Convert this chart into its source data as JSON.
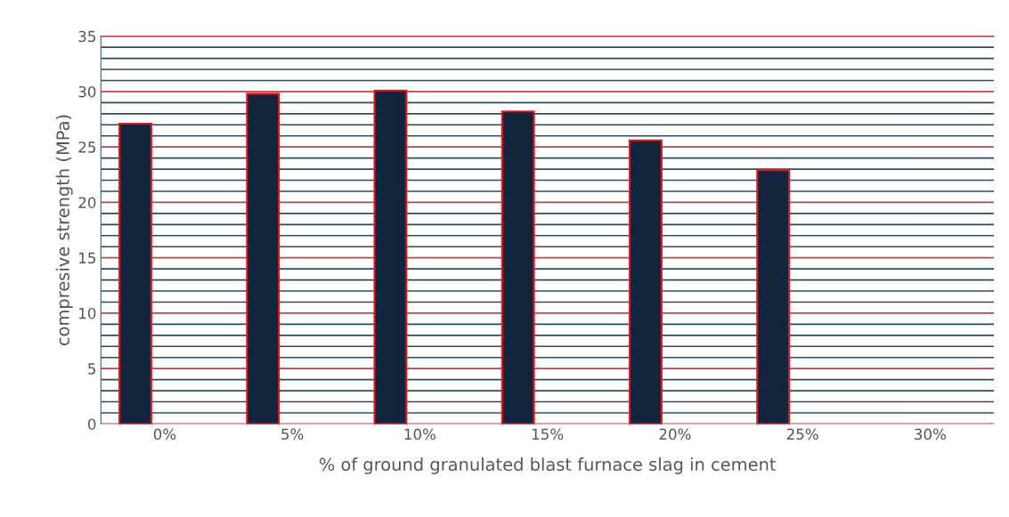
{
  "chart_data": {
    "type": "bar",
    "xlabel": "% of ground granulated blast furnace slag in cement",
    "ylabel": "compresive strength (MPa)",
    "categories": [
      "0%",
      "5%",
      "10%",
      "15%",
      "20%",
      "25%",
      "30%"
    ],
    "values": [
      27.1,
      29.8,
      30.1,
      28.2,
      25.6,
      22.9,
      null
    ],
    "color": "#13243d",
    "ylim": [
      0,
      35
    ],
    "yticks": [
      0,
      {
        "value": 1,
        "label": null
      },
      {
        "value": 2,
        "label": null
      },
      {
        "value": 3,
        "label": null
      },
      {
        "value": 4,
        "label": null
      },
      5,
      {
        "value": 6,
        "label": null
      },
      {
        "value": 7,
        "label": null
      },
      {
        "value": 8,
        "label": null
      },
      {
        "value": 9,
        "label": null
      },
      10,
      {
        "value": 11,
        "label": null
      },
      {
        "value": 12,
        "label": null
      },
      {
        "value": 13,
        "label": null
      },
      {
        "value": 14,
        "label": null
      },
      15,
      {
        "value": 16,
        "label": null
      },
      {
        "value": 17,
        "label": null
      },
      {
        "value": 18,
        "label": null
      },
      {
        "value": 19,
        "label": null
      },
      20,
      {
        "value": 21,
        "label": null
      },
      {
        "value": 22,
        "label": null
      },
      {
        "value": 23,
        "label": null
      },
      {
        "value": 24,
        "label": null
      },
      25,
      {
        "value": 26,
        "label": null
      },
      {
        "value": 27,
        "label": null
      },
      {
        "value": 28,
        "label": null
      },
      {
        "value": 29,
        "label": null
      },
      30,
      {
        "value": 31,
        "label": null
      },
      {
        "value": 32,
        "label": null
      },
      {
        "value": 33,
        "label": null
      },
      {
        "value": 34,
        "label": null
      },
      35
    ],
    "grid": "y"
  }
}
